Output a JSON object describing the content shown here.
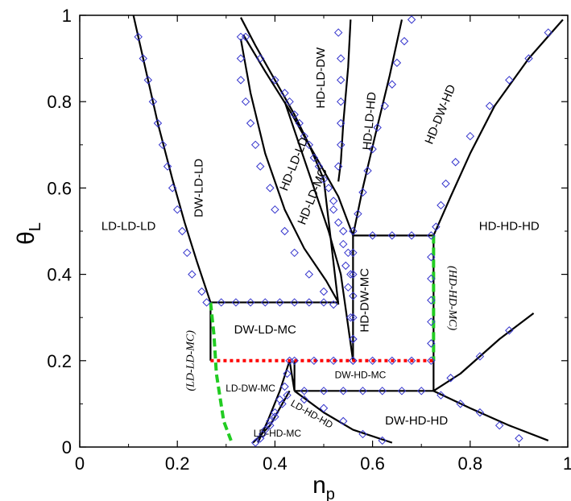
{
  "chart_data": {
    "type": "scatter",
    "xlabel": "n",
    "xlabel_sub": "p",
    "ylabel": "θ",
    "ylabel_sub": "L",
    "xlim": [
      0,
      1
    ],
    "ylim": [
      0,
      1
    ],
    "xticks": [
      "0",
      "0.2",
      "0.4",
      "0.6",
      "0.8",
      "1"
    ],
    "yticks": [
      "0",
      "0.2",
      "0.4",
      "0.6",
      "0.8",
      "1"
    ],
    "legend": "none",
    "grid": false,
    "colors": {
      "boundary": "#000000",
      "marker": "#3333cc",
      "green_dash": "#22cc22",
      "red_dot": "#ff0000"
    },
    "regions": [
      {
        "label": "LD-LD-LD",
        "x": 0.1,
        "y": 0.51,
        "style": "normal"
      },
      {
        "label": "DW-LD-LD",
        "x": 0.245,
        "y": 0.6,
        "style": "normal",
        "rotate": -90
      },
      {
        "label": "DW-LD-MC",
        "x": 0.38,
        "y": 0.27,
        "style": "normal"
      },
      {
        "label": "HD-LD-DW",
        "x": 0.495,
        "y": 0.855,
        "style": "normal",
        "rotate": -90
      },
      {
        "label": "HD-LD-LD",
        "x": 0.44,
        "y": 0.655,
        "style": "normal",
        "rotate": -68
      },
      {
        "label": "HD-LD-MC",
        "x": 0.478,
        "y": 0.58,
        "style": "normal",
        "rotate": -68
      },
      {
        "label": "HD-LD-HD",
        "x": 0.595,
        "y": 0.755,
        "style": "normal",
        "rotate": -85
      },
      {
        "label": "HD-DW-HD",
        "x": 0.74,
        "y": 0.77,
        "style": "normal",
        "rotate": -68
      },
      {
        "label": "HD-HD-HD",
        "x": 0.88,
        "y": 0.51,
        "style": "normal"
      },
      {
        "label": "HD-DW-MC",
        "x": 0.585,
        "y": 0.34,
        "style": "normal",
        "rotate": -90
      },
      {
        "label": "DW-HD-MC",
        "x": 0.575,
        "y": 0.165,
        "style": "small"
      },
      {
        "label": "LD-DW-MC",
        "x": 0.35,
        "y": 0.135,
        "style": "small"
      },
      {
        "label": "LD-HD-HD",
        "x": 0.475,
        "y": 0.075,
        "style": "small",
        "rotate": 30
      },
      {
        "label": "LD-HD-MC",
        "x": 0.405,
        "y": 0.03,
        "style": "small"
      },
      {
        "label": "DW-HD-HD",
        "x": 0.69,
        "y": 0.06,
        "style": "normal"
      },
      {
        "label": "(LD-LD-MC)",
        "x": 0.228,
        "y": 0.2,
        "style": "italic",
        "rotate": -90
      },
      {
        "label": "(HD-HD-MC)",
        "x": 0.763,
        "y": 0.345,
        "style": "italic",
        "rotate": 90
      }
    ],
    "boundaries": [
      {
        "name": "ld-dwldld",
        "points": [
          [
            0.11,
            1.0
          ],
          [
            0.13,
            0.9
          ],
          [
            0.16,
            0.75
          ],
          [
            0.19,
            0.62
          ],
          [
            0.215,
            0.52
          ],
          [
            0.24,
            0.43
          ],
          [
            0.268,
            0.335
          ]
        ]
      },
      {
        "name": "dwldld-top",
        "points": [
          [
            0.268,
            0.335
          ],
          [
            0.53,
            0.335
          ]
        ]
      },
      {
        "name": "dwldmc-right",
        "points": [
          [
            0.268,
            0.335
          ],
          [
            0.268,
            0.2
          ]
        ]
      },
      {
        "name": "hdldld-left",
        "points": [
          [
            0.33,
            0.945
          ],
          [
            0.35,
            0.82
          ],
          [
            0.38,
            0.68
          ],
          [
            0.42,
            0.55
          ],
          [
            0.46,
            0.46
          ],
          [
            0.505,
            0.385
          ],
          [
            0.53,
            0.335
          ]
        ]
      },
      {
        "name": "hdldld-right",
        "points": [
          [
            0.335,
            0.955
          ],
          [
            0.38,
            0.87
          ],
          [
            0.43,
            0.78
          ],
          [
            0.47,
            0.7
          ],
          [
            0.5,
            0.64
          ],
          [
            0.53,
            0.58
          ],
          [
            0.56,
            0.49
          ]
        ]
      },
      {
        "name": "hdlddw-left",
        "points": [
          [
            0.33,
            0.995
          ],
          [
            0.36,
            0.93
          ],
          [
            0.4,
            0.85
          ],
          [
            0.44,
            0.77
          ],
          [
            0.47,
            0.7
          ],
          [
            0.5,
            0.62
          ],
          [
            0.53,
            0.33
          ]
        ]
      },
      {
        "name": "hdlddw-right",
        "points": [
          [
            0.555,
            0.99
          ],
          [
            0.55,
            0.88
          ],
          [
            0.54,
            0.75
          ],
          [
            0.535,
            0.66
          ],
          [
            0.53,
            0.615
          ]
        ]
      },
      {
        "name": "hdldmc-line",
        "points": [
          [
            0.42,
            0.8
          ],
          [
            0.45,
            0.7
          ],
          [
            0.48,
            0.6
          ],
          [
            0.51,
            0.5
          ],
          [
            0.535,
            0.4
          ],
          [
            0.55,
            0.28
          ],
          [
            0.56,
            0.2
          ]
        ]
      },
      {
        "name": "hdldhd-left",
        "points": [
          [
            0.56,
            0.49
          ],
          [
            0.56,
            0.2
          ]
        ]
      },
      {
        "name": "hdldhd-curve",
        "points": [
          [
            0.66,
            0.99
          ],
          [
            0.635,
            0.86
          ],
          [
            0.605,
            0.72
          ],
          [
            0.58,
            0.6
          ],
          [
            0.56,
            0.49
          ]
        ]
      },
      {
        "name": "hddwmc-top",
        "points": [
          [
            0.56,
            0.49
          ],
          [
            0.725,
            0.49
          ]
        ]
      },
      {
        "name": "hddwhd-curve",
        "points": [
          [
            0.99,
            0.99
          ],
          [
            0.92,
            0.9
          ],
          [
            0.85,
            0.79
          ],
          [
            0.8,
            0.68
          ],
          [
            0.76,
            0.58
          ],
          [
            0.725,
            0.49
          ]
        ]
      },
      {
        "name": "hddwmc-right",
        "points": [
          [
            0.725,
            0.49
          ],
          [
            0.725,
            0.2
          ]
        ]
      },
      {
        "name": "dwhdmc-box-right",
        "points": [
          [
            0.725,
            0.2
          ],
          [
            0.725,
            0.13
          ]
        ]
      },
      {
        "name": "dwhdmc-bottom",
        "points": [
          [
            0.44,
            0.13
          ],
          [
            0.725,
            0.13
          ]
        ]
      },
      {
        "name": "dwhdmc-left",
        "points": [
          [
            0.44,
            0.2
          ],
          [
            0.44,
            0.13
          ]
        ]
      },
      {
        "name": "dwhdhd-curve",
        "points": [
          [
            0.725,
            0.13
          ],
          [
            0.8,
            0.09
          ],
          [
            0.88,
            0.05
          ],
          [
            0.96,
            0.015
          ]
        ]
      },
      {
        "name": "dwhdhd-upper",
        "points": [
          [
            0.725,
            0.13
          ],
          [
            0.78,
            0.17
          ],
          [
            0.86,
            0.25
          ],
          [
            0.93,
            0.31
          ]
        ]
      },
      {
        "name": "ldhdhd-lower",
        "points": [
          [
            0.44,
            0.13
          ],
          [
            0.5,
            0.08
          ],
          [
            0.56,
            0.04
          ],
          [
            0.64,
            0.01
          ]
        ]
      },
      {
        "name": "lddwmc-left",
        "points": [
          [
            0.365,
            0.01
          ],
          [
            0.385,
            0.06
          ],
          [
            0.41,
            0.13
          ],
          [
            0.43,
            0.2
          ]
        ]
      },
      {
        "name": "lddwmc-right",
        "points": [
          [
            0.355,
            0.01
          ],
          [
            0.39,
            0.05
          ],
          [
            0.43,
            0.13
          ]
        ]
      },
      {
        "name": "ldhdmc-right",
        "points": [
          [
            0.43,
            0.2
          ],
          [
            0.44,
            0.13
          ]
        ]
      }
    ],
    "dashed_lines": [
      {
        "name": "green-ld",
        "color": "#22cc22",
        "points": [
          [
            0.268,
            0.335
          ],
          [
            0.275,
            0.26
          ],
          [
            0.28,
            0.17
          ],
          [
            0.295,
            0.06
          ],
          [
            0.31,
            0.015
          ]
        ]
      },
      {
        "name": "green-hd",
        "color": "#22cc22",
        "points": [
          [
            0.725,
            0.49
          ],
          [
            0.725,
            0.2
          ]
        ]
      },
      {
        "name": "red-line",
        "color": "#ff0000",
        "points": [
          [
            0.268,
            0.2
          ],
          [
            0.725,
            0.2
          ]
        ]
      }
    ],
    "markers": [
      [
        0.12,
        0.95
      ],
      [
        0.13,
        0.9
      ],
      [
        0.14,
        0.85
      ],
      [
        0.15,
        0.8
      ],
      [
        0.16,
        0.75
      ],
      [
        0.17,
        0.7
      ],
      [
        0.18,
        0.65
      ],
      [
        0.19,
        0.6
      ],
      [
        0.2,
        0.55
      ],
      [
        0.21,
        0.5
      ],
      [
        0.22,
        0.45
      ],
      [
        0.23,
        0.4
      ],
      [
        0.25,
        0.36
      ],
      [
        0.26,
        0.335
      ],
      [
        0.29,
        0.335
      ],
      [
        0.32,
        0.335
      ],
      [
        0.35,
        0.335
      ],
      [
        0.38,
        0.335
      ],
      [
        0.41,
        0.335
      ],
      [
        0.44,
        0.335
      ],
      [
        0.47,
        0.335
      ],
      [
        0.5,
        0.335
      ],
      [
        0.52,
        0.33
      ],
      [
        0.33,
        0.95
      ],
      [
        0.33,
        0.9
      ],
      [
        0.33,
        0.85
      ],
      [
        0.34,
        0.8
      ],
      [
        0.35,
        0.75
      ],
      [
        0.36,
        0.7
      ],
      [
        0.37,
        0.65
      ],
      [
        0.39,
        0.6
      ],
      [
        0.4,
        0.55
      ],
      [
        0.42,
        0.5
      ],
      [
        0.44,
        0.45
      ],
      [
        0.47,
        0.4
      ],
      [
        0.5,
        0.36
      ],
      [
        0.34,
        0.95
      ],
      [
        0.37,
        0.9
      ],
      [
        0.4,
        0.85
      ],
      [
        0.43,
        0.8
      ],
      [
        0.45,
        0.75
      ],
      [
        0.47,
        0.7
      ],
      [
        0.49,
        0.65
      ],
      [
        0.51,
        0.6
      ],
      [
        0.52,
        0.55
      ],
      [
        0.54,
        0.5
      ],
      [
        0.55,
        0.45
      ],
      [
        0.555,
        0.4
      ],
      [
        0.42,
        0.82
      ],
      [
        0.44,
        0.77
      ],
      [
        0.46,
        0.72
      ],
      [
        0.48,
        0.67
      ],
      [
        0.5,
        0.62
      ],
      [
        0.52,
        0.57
      ],
      [
        0.53,
        0.52
      ],
      [
        0.54,
        0.47
      ],
      [
        0.545,
        0.42
      ],
      [
        0.55,
        0.37
      ],
      [
        0.555,
        0.3
      ],
      [
        0.56,
        0.25
      ],
      [
        0.53,
        0.96
      ],
      [
        0.535,
        0.9
      ],
      [
        0.535,
        0.85
      ],
      [
        0.535,
        0.8
      ],
      [
        0.535,
        0.75
      ],
      [
        0.535,
        0.7
      ],
      [
        0.53,
        0.65
      ],
      [
        0.68,
        0.99
      ],
      [
        0.665,
        0.94
      ],
      [
        0.65,
        0.89
      ],
      [
        0.64,
        0.84
      ],
      [
        0.625,
        0.79
      ],
      [
        0.61,
        0.74
      ],
      [
        0.6,
        0.69
      ],
      [
        0.59,
        0.64
      ],
      [
        0.58,
        0.59
      ],
      [
        0.57,
        0.54
      ],
      [
        0.56,
        0.5
      ],
      [
        0.56,
        0.45
      ],
      [
        0.56,
        0.4
      ],
      [
        0.56,
        0.35
      ],
      [
        0.56,
        0.3
      ],
      [
        0.56,
        0.25
      ],
      [
        0.56,
        0.2
      ],
      [
        0.6,
        0.49
      ],
      [
        0.64,
        0.49
      ],
      [
        0.68,
        0.49
      ],
      [
        0.72,
        0.49
      ],
      [
        0.96,
        0.96
      ],
      [
        0.92,
        0.9
      ],
      [
        0.88,
        0.85
      ],
      [
        0.84,
        0.79
      ],
      [
        0.8,
        0.72
      ],
      [
        0.77,
        0.66
      ],
      [
        0.75,
        0.61
      ],
      [
        0.74,
        0.56
      ],
      [
        0.73,
        0.51
      ],
      [
        0.72,
        0.44
      ],
      [
        0.72,
        0.39
      ],
      [
        0.72,
        0.34
      ],
      [
        0.72,
        0.29
      ],
      [
        0.72,
        0.24
      ],
      [
        0.72,
        0.2
      ],
      [
        0.44,
        0.2
      ],
      [
        0.48,
        0.2
      ],
      [
        0.52,
        0.2
      ],
      [
        0.56,
        0.2
      ],
      [
        0.6,
        0.2
      ],
      [
        0.64,
        0.2
      ],
      [
        0.68,
        0.2
      ],
      [
        0.46,
        0.13
      ],
      [
        0.5,
        0.13
      ],
      [
        0.54,
        0.13
      ],
      [
        0.58,
        0.13
      ],
      [
        0.62,
        0.13
      ],
      [
        0.66,
        0.13
      ],
      [
        0.7,
        0.13
      ],
      [
        0.74,
        0.12
      ],
      [
        0.78,
        0.1
      ],
      [
        0.82,
        0.08
      ],
      [
        0.86,
        0.05
      ],
      [
        0.9,
        0.02
      ],
      [
        0.76,
        0.16
      ],
      [
        0.82,
        0.21
      ],
      [
        0.88,
        0.27
      ],
      [
        0.46,
        0.11
      ],
      [
        0.5,
        0.09
      ],
      [
        0.54,
        0.06
      ],
      [
        0.58,
        0.03
      ],
      [
        0.62,
        0.015
      ],
      [
        0.37,
        0.02
      ],
      [
        0.38,
        0.04
      ],
      [
        0.39,
        0.06
      ],
      [
        0.4,
        0.08
      ],
      [
        0.41,
        0.11
      ],
      [
        0.42,
        0.14
      ],
      [
        0.425,
        0.17
      ],
      [
        0.43,
        0.2
      ],
      [
        0.36,
        0.01
      ],
      [
        0.375,
        0.03
      ],
      [
        0.39,
        0.05
      ],
      [
        0.4,
        0.07
      ],
      [
        0.415,
        0.1
      ],
      [
        0.425,
        0.12
      ]
    ]
  }
}
